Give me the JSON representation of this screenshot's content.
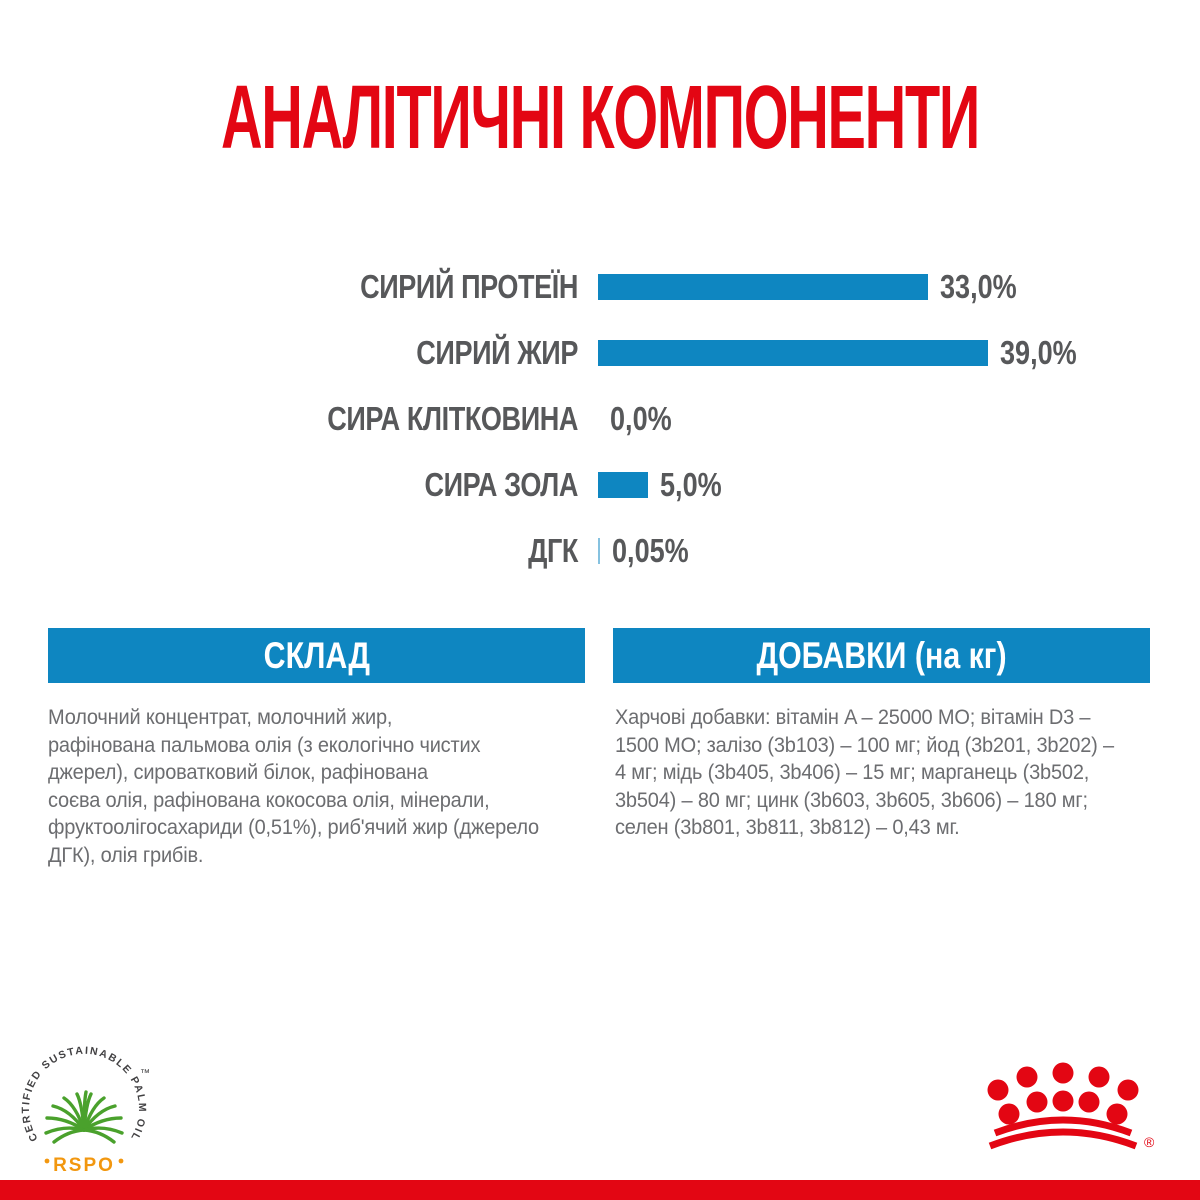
{
  "page": {
    "background": "#ffffff",
    "accent_red": "#e30613",
    "accent_blue": "#0e86c1",
    "label_gray": "#57585a",
    "body_gray": "#6c6d70"
  },
  "title": "АНАЛІТИЧНІ КОМПОНЕНТИ",
  "chart_data": {
    "type": "bar",
    "orientation": "horizontal",
    "categories": [
      "СИРИЙ ПРОТЕЇН",
      "СИРИЙ ЖИР",
      "СИРА КЛІТКОВИНА",
      "СИРА ЗОЛА",
      "ДГК"
    ],
    "values": [
      33.0,
      39.0,
      0.0,
      5.0,
      0.05
    ],
    "value_labels": [
      "33,0%",
      "39,0%",
      "0,0%",
      "5,0%",
      "0,05%"
    ],
    "bar_color": "#0e86c1",
    "xlim": [
      0,
      40
    ],
    "grid": false,
    "legend": false
  },
  "composition": {
    "header": "СКЛАД",
    "lines": [
      "Молочний концентрат, молочний жир,",
      "рафінована пальмова олія (з екологічно чистих",
      "джерел), сироватковий білок, рафінована",
      "соєва олія, рафінована кокосова олія, мінерали,",
      "фруктоолігосахариди (0,51%), риб'ячий жир (джерело",
      "ДГК), олія грибів."
    ]
  },
  "additives": {
    "header": "ДОБАВКИ (на кг)",
    "lines": [
      "Харчові добавки: вітамін A – 25000 МО; вітамін D3 –",
      "1500 МО; залізо (3b103) – 100 мг; йод (3b201, 3b202) –",
      "4 мг; мідь (3b405, 3b406) – 15 мг; марганець (3b502,",
      "3b504) – 80 мг; цинк (3b603, 3b605, 3b606) – 180 мг;",
      "селен (3b801, 3b811, 3b812) – 0,43 мг."
    ]
  },
  "footer": {
    "rspo": {
      "circle_text": "CERTIFIED SUSTAINABLE PALM OIL",
      "trademark": "™",
      "label": "RSPO",
      "label_color": "#f2970f",
      "palm_color": "#4aa12c",
      "text_color": "#414042"
    },
    "brand_logo": "royal-canin-crown",
    "brand_color": "#e30613",
    "registered_mark": "®"
  }
}
